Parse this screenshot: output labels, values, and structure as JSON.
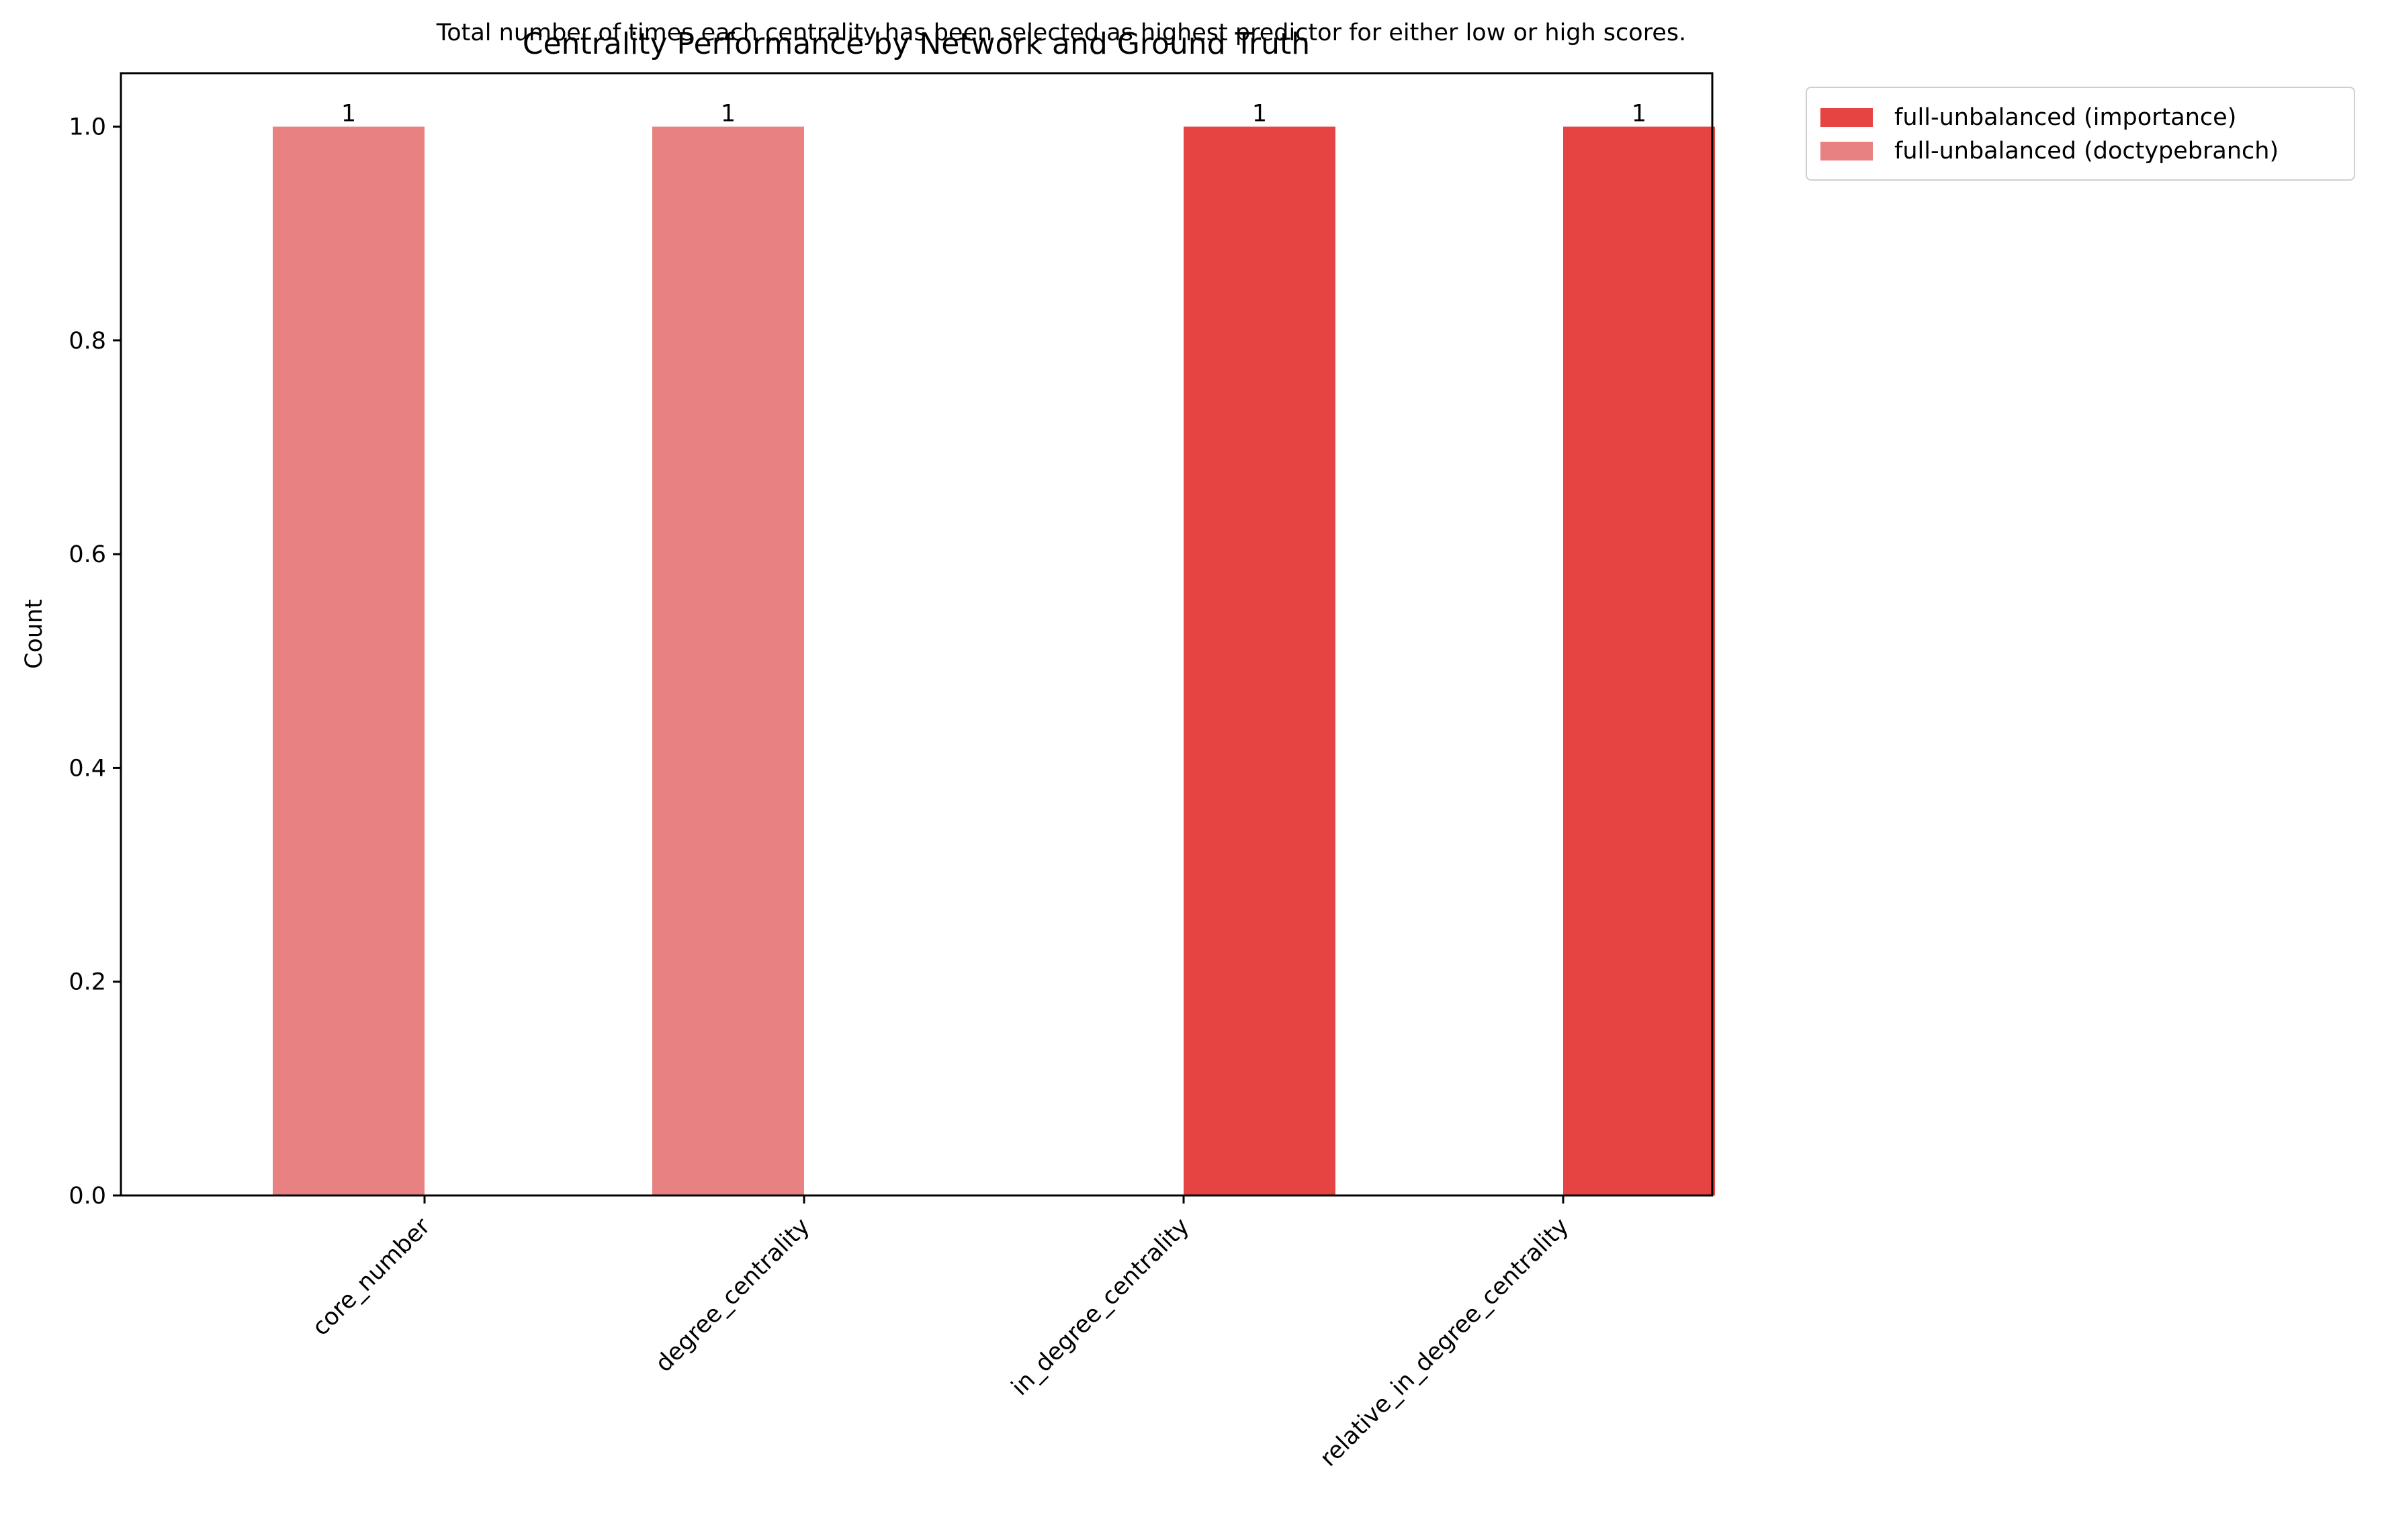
{
  "chart_data": {
    "type": "bar",
    "title": "Centrality Performance by Network and Ground Truth",
    "subtitle": "Total number of times each centrality has been selected as highest predictor for either low or high scores.",
    "xlabel": "",
    "ylabel": "Count",
    "ylim": [
      0,
      1.05
    ],
    "yticks": [
      "0.0",
      "0.2",
      "0.4",
      "0.6",
      "0.8",
      "1.0"
    ],
    "categories": [
      "core_number",
      "degree_centrality",
      "in_degree_centrality",
      "relative_in_degree_centrality"
    ],
    "series": [
      {
        "name": "full-unbalanced (importance)",
        "color": "#e64343",
        "values": [
          0,
          0,
          1,
          1
        ]
      },
      {
        "name": "full-unbalanced (doctypebranch)",
        "color": "#e88282",
        "values": [
          1,
          1,
          0,
          0
        ]
      }
    ],
    "data_labels": [
      {
        "category": "core_number",
        "series": "full-unbalanced (doctypebranch)",
        "text": "1"
      },
      {
        "category": "degree_centrality",
        "series": "full-unbalanced (doctypebranch)",
        "text": "1"
      },
      {
        "category": "in_degree_centrality",
        "series": "full-unbalanced (importance)",
        "text": "1"
      },
      {
        "category": "relative_in_degree_centrality",
        "series": "full-unbalanced (importance)",
        "text": "1"
      }
    ],
    "legend_position": "outside-top-right",
    "grid": false
  }
}
